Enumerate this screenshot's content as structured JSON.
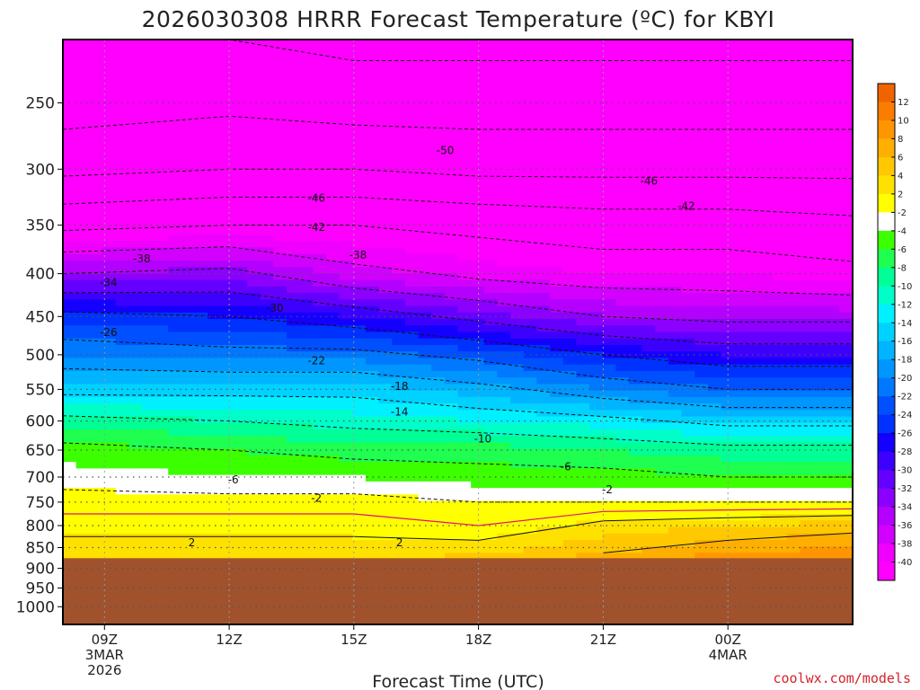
{
  "chart_data": {
    "type": "heatmap",
    "title": "2026030308 HRRR Forecast Temperature (ºC) for KBYI",
    "xlabel": "Forecast Time (UTC)",
    "ylabel": "",
    "credit": "coolwx.com/models",
    "y_scale": "log-pressure",
    "y_range_hpa": [
      210,
      1050
    ],
    "y_ticks": [
      "250",
      "300",
      "350",
      "400",
      "450",
      "500",
      "550",
      "600",
      "650",
      "700",
      "750",
      "800",
      "850",
      "900",
      "950",
      "1000"
    ],
    "x_range_hours_utc": [
      8,
      27
    ],
    "x_ticks": [
      {
        "hour": 9,
        "label": "09Z",
        "sub1": "3MAR",
        "sub2": "2026"
      },
      {
        "hour": 12,
        "label": "12Z",
        "sub1": "",
        "sub2": ""
      },
      {
        "hour": 15,
        "label": "15Z",
        "sub1": "",
        "sub2": ""
      },
      {
        "hour": 18,
        "label": "18Z",
        "sub1": "",
        "sub2": ""
      },
      {
        "hour": 21,
        "label": "21Z",
        "sub1": "",
        "sub2": ""
      },
      {
        "hour": 24,
        "label": "00Z",
        "sub1": "4MAR",
        "sub2": ""
      }
    ],
    "grid": true,
    "ground_pressure_hpa": 875,
    "legend": "right colorbar",
    "colorbar": {
      "ticks": [
        "12",
        "10",
        "8",
        "6",
        "4",
        "2",
        "-2",
        "-4",
        "-6",
        "-8",
        "-10",
        "-12",
        "-14",
        "-16",
        "-18",
        "-20",
        "-22",
        "-24",
        "-26",
        "-28",
        "-30",
        "-32",
        "-34",
        "-36",
        "-38",
        "-40"
      ],
      "colors": [
        "#f06400",
        "#fa7d00",
        "#ff9600",
        "#ffaf00",
        "#ffc800",
        "#ffe100",
        "#ffff00",
        "#ffffff",
        "#3cff00",
        "#1eff50",
        "#00ff96",
        "#00ffc8",
        "#00f0ff",
        "#00d2ff",
        "#00b4ff",
        "#0096ff",
        "#0078ff",
        "#0050ff",
        "#0032ff",
        "#1400ff",
        "#3c00ff",
        "#6400ff",
        "#8c00ff",
        "#b400ff",
        "#d200ff",
        "#f000ff",
        "#ff00ff"
      ]
    },
    "color_levels": [
      12,
      10,
      8,
      6,
      4,
      2,
      -2,
      -4,
      -6,
      -8,
      -10,
      -12,
      -14,
      -16,
      -18,
      -20,
      -22,
      -24,
      -26,
      -28,
      -30,
      -32,
      -34,
      -36,
      -38,
      -40
    ],
    "time_columns": [
      8,
      12,
      15,
      18,
      21,
      24,
      27
    ],
    "profile_levels_hpa": [
      210,
      250,
      300,
      350,
      400,
      450,
      500,
      550,
      600,
      650,
      700,
      750,
      800,
      850,
      875
    ],
    "temperature_profiles": [
      [
        -58,
        -56,
        -51,
        -43,
        -34,
        -25,
        -20,
        -15,
        -9,
        -5,
        -3,
        -1,
        1,
        3,
        3.5
      ],
      [
        -58,
        -55,
        -50,
        -42,
        -33,
        -26,
        -21,
        -15,
        -10,
        -6,
        -4,
        -1,
        1,
        3,
        3.5
      ],
      [
        -59,
        -56,
        -50,
        -42,
        -37,
        -28,
        -21,
        -15,
        -11,
        -7,
        -4,
        -1,
        1,
        3,
        3.5
      ],
      [
        -59,
        -56,
        -51,
        -43,
        -39,
        -31,
        -23,
        -17,
        -12,
        -7,
        -5,
        -2,
        0,
        3,
        4.5
      ],
      [
        -59,
        -56,
        -51,
        -44,
        -40,
        -34,
        -26,
        -20,
        -13,
        -8,
        -5,
        -2,
        3,
        5,
        7
      ],
      [
        -59,
        -56,
        -51,
        -44,
        -40,
        -35,
        -28,
        -22,
        -15,
        -9,
        -6,
        -2,
        4,
        7,
        9
      ],
      [
        -59,
        -56,
        -51,
        -45,
        -41,
        -35,
        -28,
        -22,
        -15,
        -9,
        -6,
        -2,
        5,
        8,
        10
      ]
    ],
    "contour_labels": [
      {
        "x": 17.2,
        "p": 285,
        "text": "-50"
      },
      {
        "x": 14.1,
        "p": 325,
        "text": "-46"
      },
      {
        "x": 22.1,
        "p": 310,
        "text": "-46"
      },
      {
        "x": 14.1,
        "p": 352,
        "text": "-42"
      },
      {
        "x": 23.0,
        "p": 332,
        "text": "-42"
      },
      {
        "x": 9.9,
        "p": 384,
        "text": "-38"
      },
      {
        "x": 15.1,
        "p": 380,
        "text": "-38"
      },
      {
        "x": 9.1,
        "p": 410,
        "text": "-34"
      },
      {
        "x": 13.1,
        "p": 440,
        "text": "-30"
      },
      {
        "x": 9.1,
        "p": 470,
        "text": "-26"
      },
      {
        "x": 14.1,
        "p": 508,
        "text": "-22"
      },
      {
        "x": 16.1,
        "p": 545,
        "text": "-18"
      },
      {
        "x": 16.1,
        "p": 585,
        "text": "-14"
      },
      {
        "x": 18.1,
        "p": 630,
        "text": "-10"
      },
      {
        "x": 20.1,
        "p": 680,
        "text": "-6"
      },
      {
        "x": 12.1,
        "p": 705,
        "text": "-6"
      },
      {
        "x": 14.1,
        "p": 742,
        "text": "-2"
      },
      {
        "x": 21.1,
        "p": 725,
        "text": "-2"
      },
      {
        "x": 11.1,
        "p": 838,
        "text": "2"
      },
      {
        "x": 16.1,
        "p": 838,
        "text": "2"
      }
    ]
  }
}
